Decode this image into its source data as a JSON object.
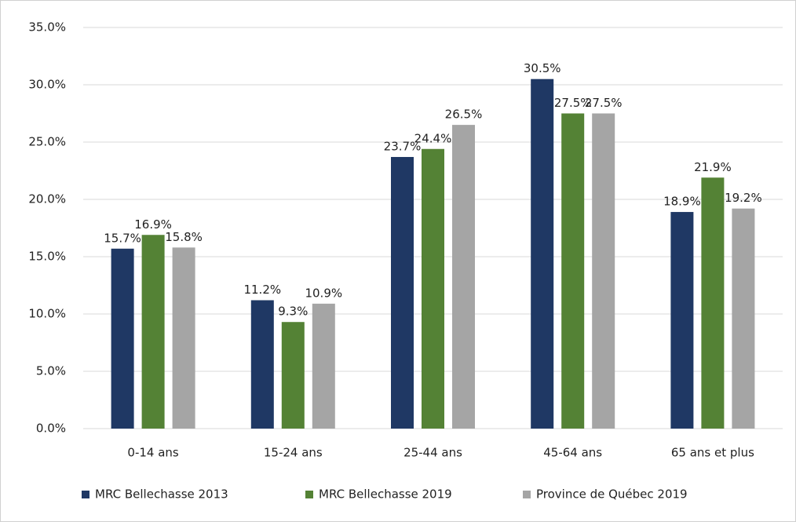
{
  "chart_data": {
    "type": "bar",
    "categories": [
      "0-14 ans",
      "15-24 ans",
      "25-44 ans",
      "45-64 ans",
      "65 ans et plus"
    ],
    "series": [
      {
        "name": "MRC Bellechasse 2013",
        "color": "#1f3864",
        "values": [
          15.7,
          11.2,
          23.7,
          30.5,
          18.9
        ],
        "value_labels": [
          "15.7%",
          "11.2%",
          "23.7%",
          "30.5%",
          "18.9%"
        ]
      },
      {
        "name": "MRC Bellechasse 2019",
        "color": "#548235",
        "values": [
          16.9,
          9.3,
          24.4,
          27.5,
          21.9
        ],
        "value_labels": [
          "16.9%",
          "9.3%",
          "24.4%",
          "27.5%",
          "21.9%"
        ]
      },
      {
        "name": "Province de Québec 2019",
        "color": "#a5a5a5",
        "values": [
          15.8,
          10.9,
          26.5,
          27.5,
          19.2
        ],
        "value_labels": [
          "15.8%",
          "10.9%",
          "26.5%",
          "27.5%",
          "19.2%"
        ]
      }
    ],
    "ylim": [
      0,
      35
    ],
    "yticks": [
      {
        "value": 0,
        "label": "0.0%"
      },
      {
        "value": 5,
        "label": "5.0%"
      },
      {
        "value": 10,
        "label": "10.0%"
      },
      {
        "value": 15,
        "label": "15.0%"
      },
      {
        "value": 20,
        "label": "20.0%"
      },
      {
        "value": 25,
        "label": "25.0%"
      },
      {
        "value": 30,
        "label": "30.0%"
      },
      {
        "value": 35,
        "label": "35.0%"
      }
    ],
    "grid": true,
    "legend": "bottom"
  }
}
